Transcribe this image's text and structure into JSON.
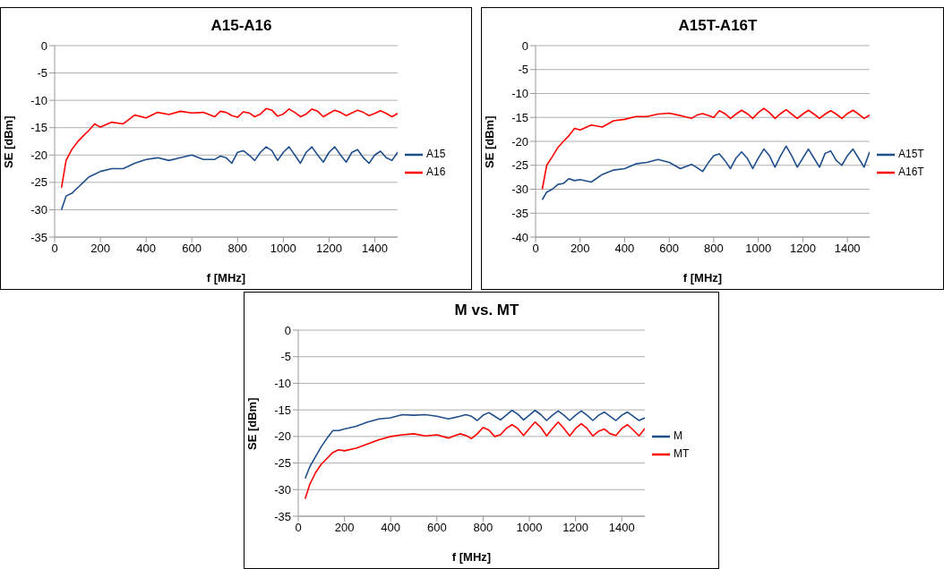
{
  "chart_data": [
    {
      "type": "line",
      "title": "A15-A16",
      "xlabel": "f [MHz]",
      "ylabel": "SE [dBm]",
      "xlim": [
        0,
        1500
      ],
      "xticks": [
        0,
        200,
        400,
        600,
        800,
        1000,
        1200,
        1400
      ],
      "ylim": [
        -35,
        0
      ],
      "yticks": [
        -35,
        -30,
        -25,
        -20,
        -15,
        -10,
        -5,
        0
      ],
      "grid": "y",
      "legend": "right",
      "marker": "none",
      "x": [
        30,
        50,
        75,
        100,
        125,
        150,
        175,
        200,
        250,
        300,
        350,
        400,
        450,
        500,
        550,
        600,
        650,
        700,
        725,
        750,
        775,
        800,
        825,
        850,
        875,
        900,
        925,
        950,
        975,
        1000,
        1025,
        1050,
        1075,
        1100,
        1125,
        1150,
        1175,
        1200,
        1225,
        1250,
        1275,
        1300,
        1325,
        1350,
        1375,
        1400,
        1425,
        1450,
        1475,
        1500
      ],
      "series": [
        {
          "name": "A15",
          "color": "#1f4e8c",
          "values": [
            -30,
            -27.5,
            -27,
            -26,
            -25,
            -24,
            -23.5,
            -23,
            -22.5,
            -22.5,
            -21.5,
            -20.8,
            -20.5,
            -21,
            -20.5,
            -20,
            -20.8,
            -20.8,
            -20.2,
            -20.5,
            -21.5,
            -19.5,
            -19.2,
            -20,
            -21,
            -19.5,
            -18.5,
            -19.2,
            -21,
            -19.5,
            -18.5,
            -20,
            -21.5,
            -19.5,
            -18.5,
            -20,
            -21.3,
            -19.5,
            -18.5,
            -20,
            -21.3,
            -19.5,
            -19,
            -20.5,
            -21.5,
            -20,
            -19.3,
            -20.5,
            -21,
            -19.5
          ]
        },
        {
          "name": "A16",
          "color": "#ff0000",
          "values": [
            -26,
            -21,
            -19,
            -17.6,
            -16.5,
            -15.5,
            -14.3,
            -14.9,
            -14,
            -14.3,
            -12.7,
            -13.2,
            -12.2,
            -12.6,
            -12,
            -12.3,
            -12.2,
            -13,
            -12,
            -12.2,
            -12.8,
            -13.1,
            -12.1,
            -12.3,
            -13,
            -12.5,
            -11.5,
            -11.8,
            -12.9,
            -12.5,
            -11.6,
            -12.2,
            -13,
            -12.5,
            -11.6,
            -12,
            -13,
            -12.4,
            -11.8,
            -12.2,
            -12.8,
            -12.3,
            -11.8,
            -12.2,
            -12.8,
            -12.4,
            -11.9,
            -12.4,
            -13,
            -12.4
          ]
        }
      ]
    },
    {
      "type": "line",
      "title": "A15T-A16T",
      "xlabel": "f [MHz]",
      "ylabel": "SE [dBm]",
      "xlim": [
        0,
        1500
      ],
      "xticks": [
        0,
        200,
        400,
        600,
        800,
        1000,
        1200,
        1400
      ],
      "ylim": [
        -40,
        0
      ],
      "yticks": [
        -40,
        -35,
        -30,
        -25,
        -20,
        -15,
        -10,
        -5,
        0
      ],
      "grid": "y",
      "legend": "right",
      "marker": "none",
      "x": [
        30,
        50,
        75,
        100,
        125,
        150,
        175,
        200,
        250,
        300,
        350,
        400,
        450,
        500,
        550,
        600,
        650,
        700,
        725,
        750,
        775,
        800,
        825,
        850,
        875,
        900,
        925,
        950,
        975,
        1000,
        1025,
        1050,
        1075,
        1100,
        1125,
        1150,
        1175,
        1200,
        1225,
        1250,
        1275,
        1300,
        1325,
        1350,
        1375,
        1400,
        1425,
        1450,
        1475,
        1500
      ],
      "series": [
        {
          "name": "A15T",
          "color": "#1f4e8c",
          "values": [
            -32.2,
            -30.6,
            -30,
            -29,
            -28.8,
            -27.8,
            -28.2,
            -28,
            -28.5,
            -26.9,
            -26,
            -25.7,
            -24.7,
            -24.4,
            -23.8,
            -24.4,
            -25.7,
            -24.8,
            -25.5,
            -26.3,
            -24.5,
            -23,
            -22.6,
            -24,
            -25.7,
            -23.5,
            -22.2,
            -23.5,
            -25.7,
            -23.5,
            -21.6,
            -23,
            -25.4,
            -23,
            -21,
            -23,
            -25.4,
            -23.5,
            -21.6,
            -23.5,
            -25.4,
            -22.5,
            -22,
            -24,
            -25,
            -23,
            -21.6,
            -23.5,
            -25.4,
            -22.2
          ]
        },
        {
          "name": "A16T",
          "color": "#ff0000",
          "values": [
            -30,
            -25,
            -23.2,
            -21.3,
            -20,
            -18.8,
            -17.3,
            -17.6,
            -16.6,
            -17,
            -15.7,
            -15.4,
            -14.8,
            -14.8,
            -14.3,
            -14.1,
            -14.6,
            -15.2,
            -14.5,
            -14.2,
            -14.6,
            -15,
            -13.6,
            -14.2,
            -15.2,
            -14.3,
            -13.5,
            -14.2,
            -15.2,
            -14,
            -13.1,
            -14,
            -15.2,
            -14.2,
            -13.4,
            -14.3,
            -15.2,
            -14.3,
            -13.5,
            -14.3,
            -15.2,
            -14.3,
            -13.6,
            -14.3,
            -15.2,
            -14.2,
            -13.5,
            -14.3,
            -15.2,
            -14.5
          ]
        }
      ]
    },
    {
      "type": "line",
      "title": "M vs. MT",
      "xlabel": "f [MHz]",
      "ylabel": "SE [dBm]",
      "xlim": [
        0,
        1500
      ],
      "xticks": [
        0,
        200,
        400,
        600,
        800,
        1000,
        1200,
        1400
      ],
      "ylim": [
        -35,
        0
      ],
      "yticks": [
        -35,
        -30,
        -25,
        -20,
        -15,
        -10,
        -5,
        0
      ],
      "grid": "y",
      "legend": "right",
      "marker": "none",
      "x": [
        30,
        50,
        75,
        100,
        125,
        150,
        175,
        200,
        250,
        300,
        350,
        400,
        450,
        500,
        550,
        600,
        650,
        700,
        725,
        750,
        775,
        800,
        825,
        850,
        875,
        900,
        925,
        950,
        975,
        1000,
        1025,
        1050,
        1075,
        1100,
        1125,
        1150,
        1175,
        1200,
        1225,
        1250,
        1275,
        1300,
        1325,
        1350,
        1375,
        1400,
        1425,
        1450,
        1475,
        1500
      ],
      "series": [
        {
          "name": "M",
          "color": "#1f4e8c",
          "values": [
            -27.9,
            -25.7,
            -23.8,
            -21.9,
            -20.3,
            -18.9,
            -18.9,
            -18.6,
            -18.1,
            -17.3,
            -16.7,
            -16.5,
            -15.9,
            -16,
            -15.9,
            -16.2,
            -16.7,
            -16.2,
            -15.9,
            -16.2,
            -17,
            -16,
            -15.5,
            -16.2,
            -16.9,
            -16,
            -15.1,
            -15.8,
            -16.9,
            -16,
            -15.1,
            -15.9,
            -17,
            -16,
            -15.2,
            -16,
            -17,
            -16,
            -15.2,
            -16,
            -17,
            -16,
            -15.4,
            -16.2,
            -17,
            -16,
            -15.4,
            -16.2,
            -17,
            -16.5
          ]
        },
        {
          "name": "MT",
          "color": "#ff0000",
          "values": [
            -31.7,
            -29,
            -26.8,
            -25.2,
            -24.1,
            -23,
            -22.5,
            -22.7,
            -22.2,
            -21.4,
            -20.6,
            -20,
            -19.7,
            -19.5,
            -19.9,
            -19.7,
            -20.3,
            -19.5,
            -19.8,
            -20.4,
            -19.5,
            -18.3,
            -18.8,
            -20,
            -19.7,
            -18.5,
            -17.8,
            -18.5,
            -19.8,
            -18.5,
            -17.3,
            -18.3,
            -19.9,
            -18.5,
            -17.3,
            -18.5,
            -19.9,
            -18.5,
            -17.6,
            -18.5,
            -19.9,
            -19,
            -18.6,
            -19.5,
            -19.8,
            -18.5,
            -17.8,
            -18.8,
            -19.9,
            -18.5
          ]
        }
      ]
    }
  ]
}
